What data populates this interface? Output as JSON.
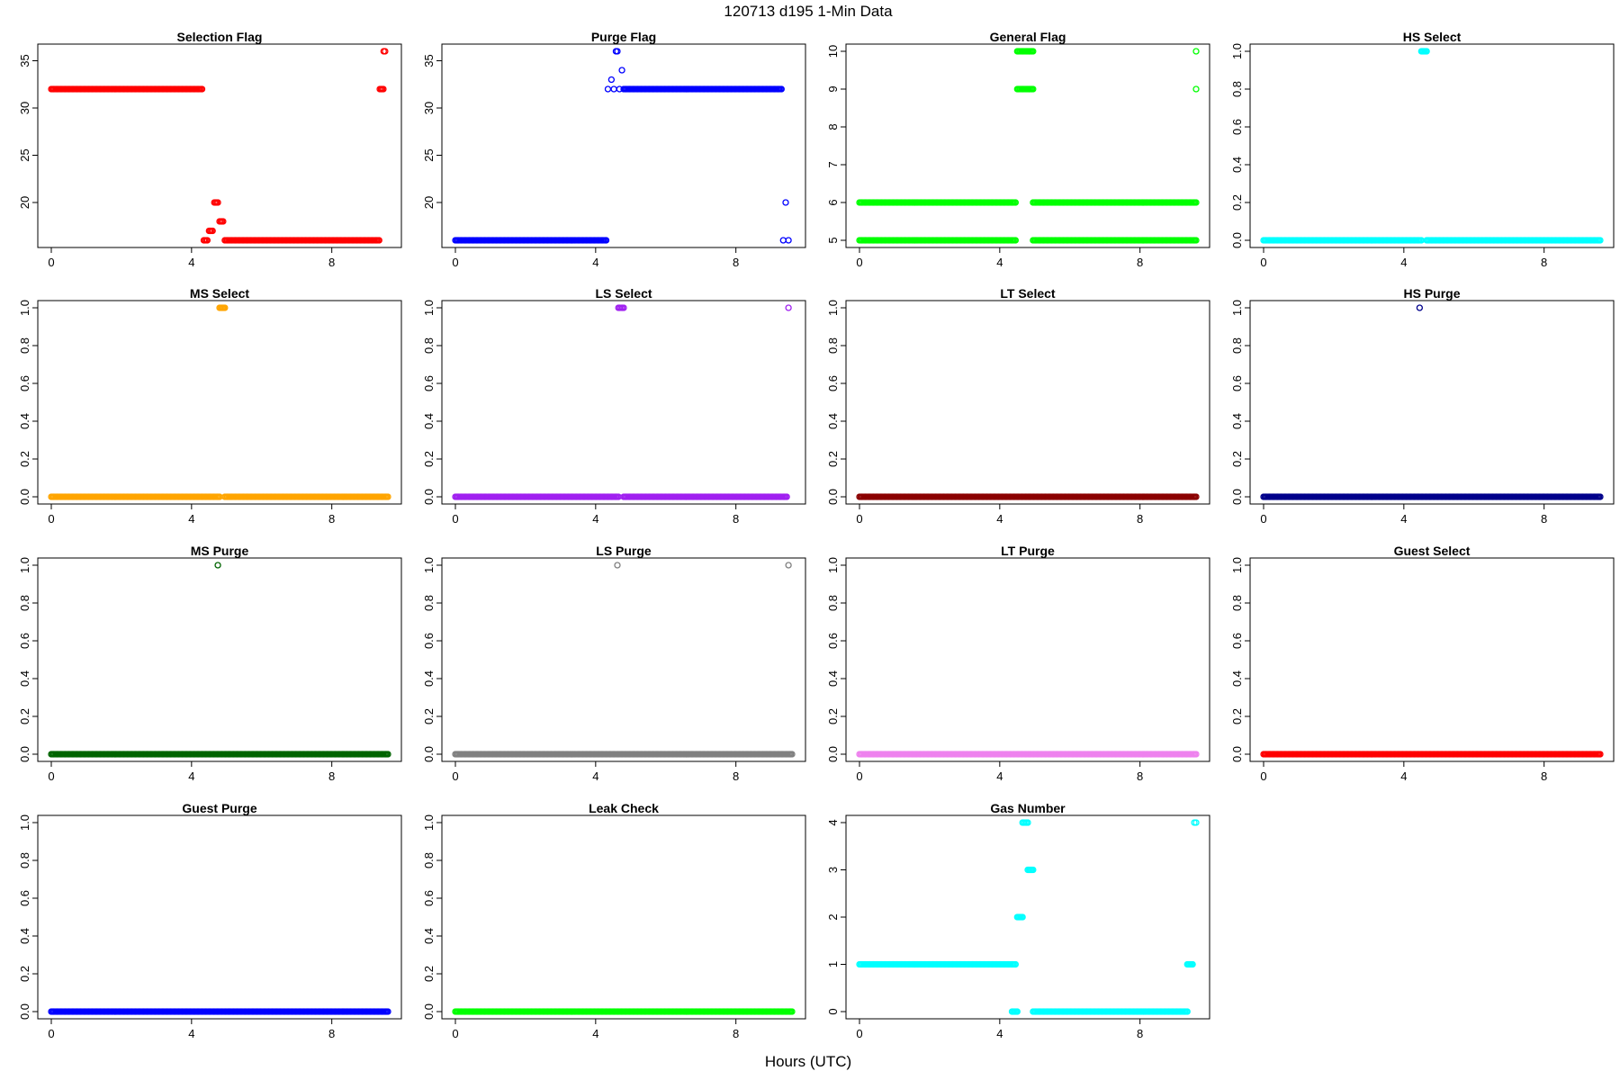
{
  "figure": {
    "title": "120713   d195   1-Min Data",
    "xlabel": "Hours (UTC)"
  },
  "chart_data": [
    {
      "type": "scatter",
      "title": "Selection Flag",
      "color": "#ff0000",
      "xlim": [
        0,
        9.6
      ],
      "ylim": [
        16,
        36
      ],
      "xticks": [
        0,
        4,
        8
      ],
      "xtick_labels": [
        "0",
        "4",
        "8"
      ],
      "yticks": [
        20,
        25,
        30,
        35
      ],
      "ytick_labels": [
        "20",
        "25",
        "30",
        "35"
      ],
      "segments": [
        {
          "x": [
            0.0,
            4.3
          ],
          "y": 32
        },
        {
          "x": [
            4.35,
            4.45
          ],
          "y": 16
        },
        {
          "x": [
            4.5,
            4.6
          ],
          "y": 17
        },
        {
          "x": [
            4.65,
            4.75
          ],
          "y": 20
        },
        {
          "x": [
            4.8,
            4.9
          ],
          "y": 18
        },
        {
          "x": [
            4.95,
            9.35
          ],
          "y": 16
        },
        {
          "x": [
            9.37,
            9.47
          ],
          "y": 32
        },
        {
          "x": [
            9.48,
            9.52
          ],
          "y": 36
        }
      ]
    },
    {
      "type": "scatter",
      "title": "Purge Flag",
      "color": "#0000ff",
      "xlim": [
        0,
        9.6
      ],
      "ylim": [
        16,
        36
      ],
      "xticks": [
        0,
        4,
        8
      ],
      "xtick_labels": [
        "0",
        "4",
        "8"
      ],
      "yticks": [
        20,
        25,
        30,
        35
      ],
      "ytick_labels": [
        "20",
        "25",
        "30",
        "35"
      ],
      "segments": [
        {
          "x": [
            0.0,
            4.3
          ],
          "y": 16
        },
        {
          "x": [
            4.35,
            4.35
          ],
          "y": 32
        },
        {
          "x": [
            4.45,
            4.45
          ],
          "y": 33
        },
        {
          "x": [
            4.52,
            4.52
          ],
          "y": 32
        },
        {
          "x": [
            4.58,
            4.62
          ],
          "y": 36
        },
        {
          "x": [
            4.68,
            4.68
          ],
          "y": 32
        },
        {
          "x": [
            4.75,
            4.75
          ],
          "y": 34
        },
        {
          "x": [
            4.8,
            9.3
          ],
          "y": 32
        },
        {
          "x": [
            9.35,
            9.35
          ],
          "y": 16
        },
        {
          "x": [
            9.42,
            9.42
          ],
          "y": 20
        },
        {
          "x": [
            9.5,
            9.5
          ],
          "y": 16
        }
      ]
    },
    {
      "type": "scatter",
      "title": "General Flag",
      "color": "#00ff00",
      "xlim": [
        0,
        9.6
      ],
      "ylim": [
        5,
        10
      ],
      "xticks": [
        0,
        4,
        8
      ],
      "xtick_labels": [
        "0",
        "4",
        "8"
      ],
      "yticks": [
        5,
        6,
        7,
        8,
        9,
        10
      ],
      "ytick_labels": [
        "5",
        "6",
        "7",
        "8",
        "9",
        "10"
      ],
      "segments": [
        {
          "x": [
            0.0,
            4.45
          ],
          "y": 5
        },
        {
          "x": [
            0.0,
            4.45
          ],
          "y": 6
        },
        {
          "x": [
            4.5,
            4.95
          ],
          "y": 9
        },
        {
          "x": [
            4.5,
            4.95
          ],
          "y": 10
        },
        {
          "x": [
            4.95,
            9.6
          ],
          "y": 5
        },
        {
          "x": [
            4.95,
            9.6
          ],
          "y": 6
        },
        {
          "x": [
            9.6,
            9.6
          ],
          "y": 9
        },
        {
          "x": [
            9.6,
            9.6
          ],
          "y": 10
        }
      ]
    },
    {
      "type": "scatter",
      "title": "HS Select",
      "color": "#00ffff",
      "xlim": [
        0,
        9.6
      ],
      "ylim": [
        0,
        1
      ],
      "xticks": [
        0,
        4,
        8
      ],
      "xtick_labels": [
        "0",
        "4",
        "8"
      ],
      "yticks": [
        0,
        0.2,
        0.4,
        0.6,
        0.8,
        1
      ],
      "ytick_labels": [
        "0.0",
        "0.2",
        "0.4",
        "0.6",
        "0.8",
        "1.0"
      ],
      "segments": [
        {
          "x": [
            0.0,
            4.5
          ],
          "y": 0
        },
        {
          "x": [
            4.5,
            4.65
          ],
          "y": 1
        },
        {
          "x": [
            4.65,
            9.6
          ],
          "y": 0
        }
      ]
    },
    {
      "type": "scatter",
      "title": "MS Select",
      "color": "#ffa500",
      "xlim": [
        0,
        9.6
      ],
      "ylim": [
        0,
        1
      ],
      "xticks": [
        0,
        4,
        8
      ],
      "xtick_labels": [
        "0",
        "4",
        "8"
      ],
      "yticks": [
        0,
        0.2,
        0.4,
        0.6,
        0.8,
        1
      ],
      "ytick_labels": [
        "0.0",
        "0.2",
        "0.4",
        "0.6",
        "0.8",
        "1.0"
      ],
      "segments": [
        {
          "x": [
            0.0,
            4.8
          ],
          "y": 0
        },
        {
          "x": [
            4.8,
            4.95
          ],
          "y": 1
        },
        {
          "x": [
            4.95,
            9.6
          ],
          "y": 0
        }
      ]
    },
    {
      "type": "scatter",
      "title": "LS Select",
      "color": "#a020f0",
      "xlim": [
        0,
        9.6
      ],
      "ylim": [
        0,
        1
      ],
      "xticks": [
        0,
        4,
        8
      ],
      "xtick_labels": [
        "0",
        "4",
        "8"
      ],
      "yticks": [
        0,
        0.2,
        0.4,
        0.6,
        0.8,
        1
      ],
      "ytick_labels": [
        "0.0",
        "0.2",
        "0.4",
        "0.6",
        "0.8",
        "1.0"
      ],
      "segments": [
        {
          "x": [
            0.0,
            4.65
          ],
          "y": 0
        },
        {
          "x": [
            4.65,
            4.8
          ],
          "y": 1
        },
        {
          "x": [
            4.8,
            9.45
          ],
          "y": 0
        },
        {
          "x": [
            9.5,
            9.5
          ],
          "y": 1
        }
      ]
    },
    {
      "type": "scatter",
      "title": "LT Select",
      "color": "#8b0000",
      "xlim": [
        0,
        9.6
      ],
      "ylim": [
        0,
        1
      ],
      "xticks": [
        0,
        4,
        8
      ],
      "xtick_labels": [
        "0",
        "4",
        "8"
      ],
      "yticks": [
        0,
        0.2,
        0.4,
        0.6,
        0.8,
        1
      ],
      "ytick_labels": [
        "0.0",
        "0.2",
        "0.4",
        "0.6",
        "0.8",
        "1.0"
      ],
      "segments": [
        {
          "x": [
            0.0,
            9.6
          ],
          "y": 0
        }
      ]
    },
    {
      "type": "scatter",
      "title": "HS Purge",
      "color": "#00008b",
      "xlim": [
        0,
        9.6
      ],
      "ylim": [
        0,
        1
      ],
      "xticks": [
        0,
        4,
        8
      ],
      "xtick_labels": [
        "0",
        "4",
        "8"
      ],
      "yticks": [
        0,
        0.2,
        0.4,
        0.6,
        0.8,
        1
      ],
      "ytick_labels": [
        "0.0",
        "0.2",
        "0.4",
        "0.6",
        "0.8",
        "1.0"
      ],
      "segments": [
        {
          "x": [
            0.0,
            9.6
          ],
          "y": 0
        },
        {
          "x": [
            4.45,
            4.45
          ],
          "y": 1
        }
      ]
    },
    {
      "type": "scatter",
      "title": "MS Purge",
      "color": "#006400",
      "xlim": [
        0,
        9.6
      ],
      "ylim": [
        0,
        1
      ],
      "xticks": [
        0,
        4,
        8
      ],
      "xtick_labels": [
        "0",
        "4",
        "8"
      ],
      "yticks": [
        0,
        0.2,
        0.4,
        0.6,
        0.8,
        1
      ],
      "ytick_labels": [
        "0.0",
        "0.2",
        "0.4",
        "0.6",
        "0.8",
        "1.0"
      ],
      "segments": [
        {
          "x": [
            0.0,
            9.6
          ],
          "y": 0
        },
        {
          "x": [
            4.75,
            4.75
          ],
          "y": 1
        }
      ]
    },
    {
      "type": "scatter",
      "title": "LS Purge",
      "color": "#808080",
      "xlim": [
        0,
        9.6
      ],
      "ylim": [
        0,
        1
      ],
      "xticks": [
        0,
        4,
        8
      ],
      "xtick_labels": [
        "0",
        "4",
        "8"
      ],
      "yticks": [
        0,
        0.2,
        0.4,
        0.6,
        0.8,
        1
      ],
      "ytick_labels": [
        "0.0",
        "0.2",
        "0.4",
        "0.6",
        "0.8",
        "1.0"
      ],
      "segments": [
        {
          "x": [
            0.0,
            9.6
          ],
          "y": 0
        },
        {
          "x": [
            4.62,
            4.62
          ],
          "y": 1
        },
        {
          "x": [
            9.5,
            9.5
          ],
          "y": 1
        }
      ]
    },
    {
      "type": "scatter",
      "title": "LT Purge",
      "color": "#ee82ee",
      "xlim": [
        0,
        9.6
      ],
      "ylim": [
        0,
        1
      ],
      "xticks": [
        0,
        4,
        8
      ],
      "xtick_labels": [
        "0",
        "4",
        "8"
      ],
      "yticks": [
        0,
        0.2,
        0.4,
        0.6,
        0.8,
        1
      ],
      "ytick_labels": [
        "0.0",
        "0.2",
        "0.4",
        "0.6",
        "0.8",
        "1.0"
      ],
      "segments": [
        {
          "x": [
            0.0,
            9.6
          ],
          "y": 0
        }
      ]
    },
    {
      "type": "scatter",
      "title": "Guest Select",
      "color": "#ff0000",
      "xlim": [
        0,
        9.6
      ],
      "ylim": [
        0,
        1
      ],
      "xticks": [
        0,
        4,
        8
      ],
      "xtick_labels": [
        "0",
        "4",
        "8"
      ],
      "yticks": [
        0,
        0.2,
        0.4,
        0.6,
        0.8,
        1
      ],
      "ytick_labels": [
        "0.0",
        "0.2",
        "0.4",
        "0.6",
        "0.8",
        "1.0"
      ],
      "segments": [
        {
          "x": [
            0.0,
            9.6
          ],
          "y": 0
        }
      ]
    },
    {
      "type": "scatter",
      "title": "Guest Purge",
      "color": "#0000ff",
      "xlim": [
        0,
        9.6
      ],
      "ylim": [
        0,
        1
      ],
      "xticks": [
        0,
        4,
        8
      ],
      "xtick_labels": [
        "0",
        "4",
        "8"
      ],
      "yticks": [
        0,
        0.2,
        0.4,
        0.6,
        0.8,
        1
      ],
      "ytick_labels": [
        "0.0",
        "0.2",
        "0.4",
        "0.6",
        "0.8",
        "1.0"
      ],
      "segments": [
        {
          "x": [
            0.0,
            9.6
          ],
          "y": 0
        }
      ]
    },
    {
      "type": "scatter",
      "title": "Leak Check",
      "color": "#00ff00",
      "xlim": [
        0,
        9.6
      ],
      "ylim": [
        0,
        1
      ],
      "xticks": [
        0,
        4,
        8
      ],
      "xtick_labels": [
        "0",
        "4",
        "8"
      ],
      "yticks": [
        0,
        0.2,
        0.4,
        0.6,
        0.8,
        1
      ],
      "ytick_labels": [
        "0.0",
        "0.2",
        "0.4",
        "0.6",
        "0.8",
        "1.0"
      ],
      "segments": [
        {
          "x": [
            0.0,
            9.6
          ],
          "y": 0
        }
      ]
    },
    {
      "type": "scatter",
      "title": "Gas Number",
      "color": "#00ffff",
      "xlim": [
        0,
        9.6
      ],
      "ylim": [
        0,
        4
      ],
      "xticks": [
        0,
        4,
        8
      ],
      "xtick_labels": [
        "0",
        "4",
        "8"
      ],
      "yticks": [
        0,
        1,
        2,
        3,
        4
      ],
      "ytick_labels": [
        "0",
        "1",
        "2",
        "3",
        "4"
      ],
      "segments": [
        {
          "x": [
            0.0,
            4.45
          ],
          "y": 1
        },
        {
          "x": [
            4.35,
            4.5
          ],
          "y": 0
        },
        {
          "x": [
            4.5,
            4.65
          ],
          "y": 2
        },
        {
          "x": [
            4.65,
            4.8
          ],
          "y": 4
        },
        {
          "x": [
            4.8,
            4.95
          ],
          "y": 3
        },
        {
          "x": [
            4.95,
            9.35
          ],
          "y": 0
        },
        {
          "x": [
            9.35,
            9.5
          ],
          "y": 1
        },
        {
          "x": [
            9.55,
            9.6
          ],
          "y": 4
        }
      ]
    }
  ]
}
